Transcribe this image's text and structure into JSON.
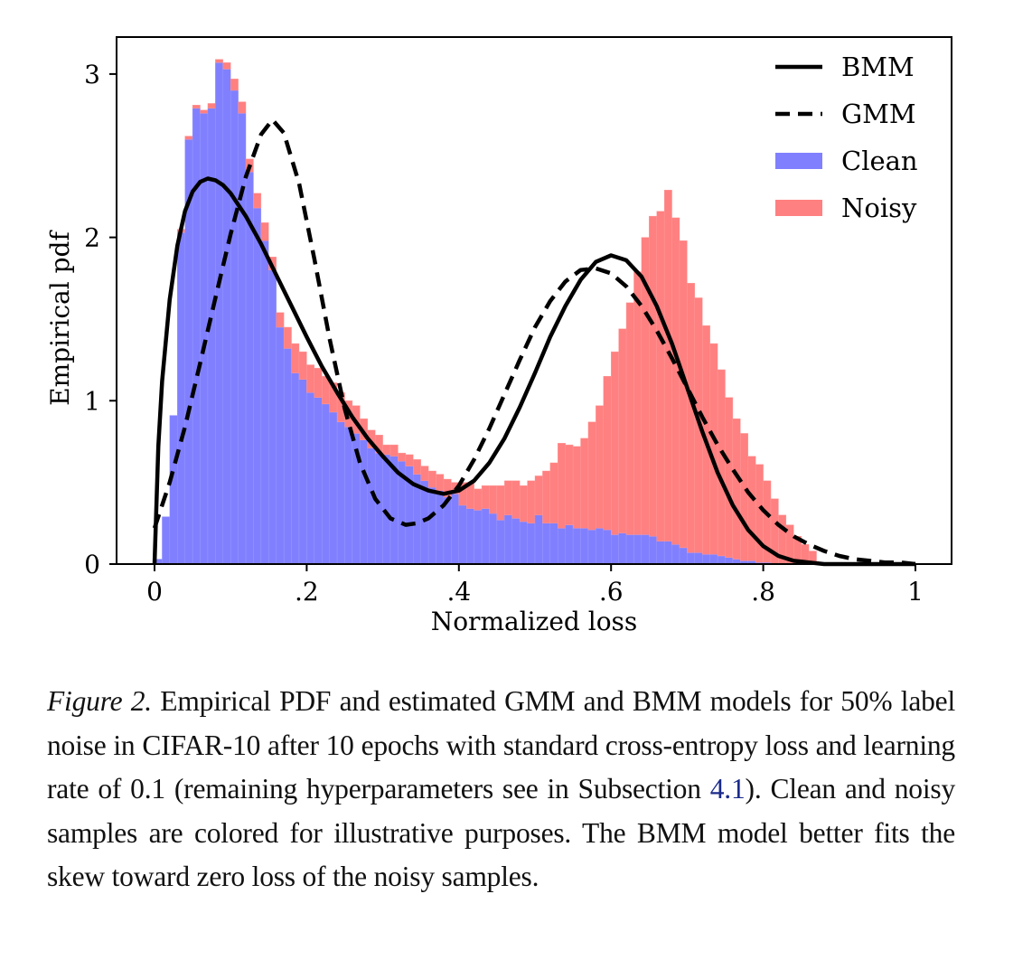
{
  "chart_data": {
    "type": "bar",
    "subtype": "stacked-histogram-with-density-curves",
    "xlabel": "Normalized loss",
    "ylabel": "Empirical pdf",
    "xlim": [
      -0.05,
      1.05
    ],
    "ylim": [
      0,
      3.22
    ],
    "xticks": [
      0,
      0.2,
      0.4,
      0.6,
      0.8,
      1
    ],
    "xtick_labels": [
      "0",
      ".2",
      ".4",
      ".6",
      ".8",
      "1"
    ],
    "yticks": [
      0,
      1,
      2,
      3
    ],
    "ytick_labels": [
      "0",
      "1",
      "2",
      "3"
    ],
    "grid": false,
    "legend": {
      "position": "top-right",
      "entries": [
        {
          "label": "BMM",
          "style": "solid-line",
          "color": "#000000"
        },
        {
          "label": "GMM",
          "style": "dashed-line",
          "color": "#000000"
        },
        {
          "label": "Clean",
          "style": "patch",
          "color": "#8080ff"
        },
        {
          "label": "Noisy",
          "style": "patch",
          "color": "#ff8080"
        }
      ]
    },
    "bin_width": 0.01,
    "bin_starts": [
      0.0,
      0.01,
      0.02,
      0.03,
      0.04,
      0.05,
      0.06,
      0.07,
      0.08,
      0.09,
      0.1,
      0.11,
      0.12,
      0.13,
      0.14,
      0.15,
      0.16,
      0.17,
      0.18,
      0.19,
      0.2,
      0.21,
      0.22,
      0.23,
      0.24,
      0.25,
      0.26,
      0.27,
      0.28,
      0.29,
      0.3,
      0.31,
      0.32,
      0.33,
      0.34,
      0.35,
      0.36,
      0.37,
      0.38,
      0.39,
      0.4,
      0.41,
      0.42,
      0.43,
      0.44,
      0.45,
      0.46,
      0.47,
      0.48,
      0.49,
      0.5,
      0.51,
      0.52,
      0.53,
      0.54,
      0.55,
      0.56,
      0.57,
      0.58,
      0.59,
      0.6,
      0.61,
      0.62,
      0.63,
      0.64,
      0.65,
      0.66,
      0.67,
      0.68,
      0.69,
      0.7,
      0.71,
      0.72,
      0.73,
      0.74,
      0.75,
      0.76,
      0.77,
      0.78,
      0.79,
      0.8,
      0.81,
      0.82,
      0.83,
      0.84,
      0.85,
      0.86
    ],
    "series": [
      {
        "name": "Clean",
        "color": "#8080ff",
        "values": [
          0.03,
          0.29,
          0.91,
          2.03,
          2.6,
          2.79,
          2.76,
          2.79,
          3.07,
          3.03,
          2.9,
          2.76,
          2.4,
          2.18,
          1.98,
          1.8,
          1.45,
          1.32,
          1.17,
          1.13,
          1.05,
          1.02,
          0.98,
          0.93,
          0.87,
          0.84,
          0.8,
          0.76,
          0.71,
          0.68,
          0.67,
          0.66,
          0.63,
          0.6,
          0.55,
          0.51,
          0.47,
          0.45,
          0.41,
          0.43,
          0.36,
          0.34,
          0.33,
          0.34,
          0.31,
          0.27,
          0.3,
          0.28,
          0.26,
          0.25,
          0.3,
          0.25,
          0.25,
          0.22,
          0.24,
          0.22,
          0.22,
          0.21,
          0.22,
          0.21,
          0.18,
          0.19,
          0.18,
          0.18,
          0.18,
          0.17,
          0.14,
          0.14,
          0.12,
          0.1,
          0.07,
          0.07,
          0.06,
          0.06,
          0.05,
          0.04,
          0.03,
          0.02,
          0.02,
          0.01,
          0.01,
          0.0,
          0.0,
          0.0,
          0.0,
          0.0,
          0.0
        ]
      },
      {
        "name": "Noisy",
        "color": "#ff8080",
        "values": [
          0.0,
          0.0,
          0.0,
          0.02,
          0.02,
          0.02,
          0.02,
          0.03,
          0.02,
          0.04,
          0.07,
          0.07,
          0.08,
          0.09,
          0.11,
          0.08,
          0.09,
          0.13,
          0.18,
          0.17,
          0.17,
          0.18,
          0.17,
          0.18,
          0.18,
          0.16,
          0.17,
          0.13,
          0.11,
          0.11,
          0.06,
          0.07,
          0.05,
          0.07,
          0.09,
          0.09,
          0.1,
          0.1,
          0.11,
          0.07,
          0.14,
          0.16,
          0.13,
          0.14,
          0.17,
          0.21,
          0.21,
          0.23,
          0.22,
          0.26,
          0.24,
          0.32,
          0.37,
          0.52,
          0.49,
          0.5,
          0.55,
          0.66,
          0.75,
          0.94,
          1.12,
          1.25,
          1.42,
          1.61,
          1.82,
          1.96,
          2.02,
          2.15,
          2.0,
          1.88,
          1.65,
          1.56,
          1.4,
          1.29,
          1.14,
          0.98,
          0.86,
          0.78,
          0.64,
          0.6,
          0.5,
          0.4,
          0.3,
          0.24,
          0.17,
          0.12,
          0.08
        ]
      }
    ],
    "curves": [
      {
        "name": "BMM",
        "style": "solid",
        "color": "#000000",
        "x": [
          0.0,
          0.005,
          0.01,
          0.02,
          0.03,
          0.04,
          0.05,
          0.06,
          0.07,
          0.08,
          0.09,
          0.1,
          0.12,
          0.14,
          0.16,
          0.18,
          0.2,
          0.22,
          0.24,
          0.26,
          0.28,
          0.3,
          0.32,
          0.34,
          0.36,
          0.38,
          0.4,
          0.42,
          0.44,
          0.46,
          0.48,
          0.5,
          0.52,
          0.54,
          0.56,
          0.58,
          0.6,
          0.62,
          0.64,
          0.66,
          0.68,
          0.7,
          0.72,
          0.74,
          0.76,
          0.78,
          0.8,
          0.82,
          0.84,
          0.86,
          0.88,
          0.9,
          0.92,
          0.94,
          0.96,
          0.98,
          1.0
        ],
        "y": [
          0.0,
          0.72,
          1.12,
          1.62,
          1.95,
          2.16,
          2.28,
          2.34,
          2.36,
          2.35,
          2.32,
          2.27,
          2.13,
          1.96,
          1.77,
          1.58,
          1.39,
          1.21,
          1.05,
          0.9,
          0.77,
          0.66,
          0.56,
          0.49,
          0.45,
          0.43,
          0.45,
          0.51,
          0.62,
          0.77,
          0.96,
          1.17,
          1.39,
          1.58,
          1.74,
          1.85,
          1.89,
          1.86,
          1.76,
          1.58,
          1.35,
          1.08,
          0.81,
          0.56,
          0.36,
          0.21,
          0.11,
          0.05,
          0.02,
          0.01,
          0.0,
          0.0,
          0.0,
          0.0,
          0.0,
          0.0,
          0.0
        ]
      },
      {
        "name": "GMM",
        "style": "dashed",
        "color": "#000000",
        "x": [
          0.0,
          0.02,
          0.04,
          0.06,
          0.08,
          0.1,
          0.12,
          0.14,
          0.155,
          0.17,
          0.19,
          0.21,
          0.23,
          0.25,
          0.27,
          0.29,
          0.31,
          0.33,
          0.345,
          0.36,
          0.38,
          0.4,
          0.42,
          0.44,
          0.46,
          0.48,
          0.5,
          0.52,
          0.54,
          0.56,
          0.58,
          0.6,
          0.62,
          0.64,
          0.66,
          0.68,
          0.7,
          0.72,
          0.74,
          0.76,
          0.78,
          0.8,
          0.82,
          0.84,
          0.86,
          0.88,
          0.9,
          0.92,
          0.94,
          0.96,
          0.98,
          1.0
        ],
        "y": [
          0.22,
          0.5,
          0.84,
          1.23,
          1.63,
          2.02,
          2.37,
          2.63,
          2.72,
          2.64,
          2.33,
          1.87,
          1.38,
          0.95,
          0.62,
          0.4,
          0.28,
          0.24,
          0.25,
          0.28,
          0.36,
          0.48,
          0.64,
          0.83,
          1.04,
          1.25,
          1.45,
          1.61,
          1.73,
          1.8,
          1.81,
          1.78,
          1.7,
          1.58,
          1.43,
          1.26,
          1.08,
          0.9,
          0.73,
          0.58,
          0.44,
          0.33,
          0.24,
          0.17,
          0.12,
          0.08,
          0.05,
          0.03,
          0.02,
          0.01,
          0.01,
          0.0
        ]
      }
    ]
  },
  "caption": {
    "label": "Figure 2.",
    "text_before_ref": " Empirical PDF and estimated GMM and BMM models for 50% label noise in CIFAR-10 after 10 epochs with standard cross-entropy loss and learning rate of 0.1 (remaining hyperparameters see in Subsection ",
    "ref": "4.1",
    "text_after_ref": "). Clean and noisy samples are colored for illustrative purposes.  The BMM model better fits the skew toward zero loss of the noisy samples."
  }
}
